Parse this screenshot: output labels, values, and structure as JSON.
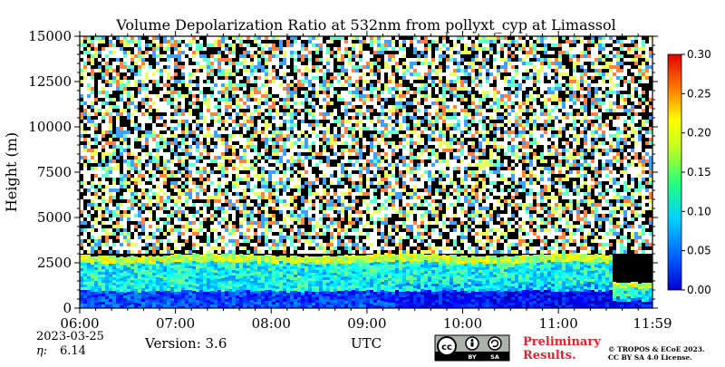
{
  "chart_data": {
    "type": "heatmap",
    "title": "Volume Depolarization Ratio at 532nm from pollyxt_cyp at Limassol",
    "xlabel": "UTC",
    "ylabel": "Height (m)",
    "xlim": [
      "06:00",
      "11:59"
    ],
    "ylim": [
      0,
      15000
    ],
    "x_ticks": [
      "06:00",
      "07:00",
      "08:00",
      "09:00",
      "10:00",
      "11:00",
      "11:59"
    ],
    "x_tick_hours": [
      6,
      7,
      8,
      9,
      10,
      11,
      11.983
    ],
    "y_ticks": [
      0,
      2500,
      5000,
      7500,
      10000,
      12500,
      15000
    ],
    "y_tick_labels": [
      "0",
      "2500",
      "5000",
      "7500",
      "10000",
      "12500",
      "15000"
    ],
    "colorbar": {
      "range": [
        0,
        0.3
      ],
      "ticks": [
        0,
        0.05,
        0.1,
        0.15,
        0.2,
        0.25,
        0.3
      ],
      "tick_labels": [
        "0.00",
        "0.05",
        "0.10",
        "0.15",
        "0.20",
        "0.25",
        "0.30"
      ],
      "colormap": "jet"
    },
    "layers": [
      {
        "description": "boundary layer (aerosol)",
        "height_range_m": [
          0,
          2900
        ],
        "typical_value": 0.07
      },
      {
        "description": "near-surface weaker depolarization",
        "height_range_m": [
          0,
          800
        ],
        "typical_value": 0.04
      },
      {
        "description": "layer top (enhanced)",
        "height_range_m": [
          2700,
          3100
        ],
        "typical_value": 0.16
      },
      {
        "description": "noise region above layer",
        "height_range_m": [
          3100,
          15000
        ],
        "typical_value": "noisy"
      }
    ]
  },
  "footer": {
    "date": "2023-03-25",
    "eta_label": "η:",
    "eta_value": "6.14",
    "version": "Version: 3.6",
    "license_icon_text": {
      "cc": "cc",
      "by": "BY",
      "sa": "SA"
    },
    "preliminary_line1": "Preliminary",
    "preliminary_line2": "Results.",
    "copyright_line1": "© TROPOS & ECoE 2023.",
    "copyright_line2": "CC BY SA 4.0 License."
  },
  "colors": {
    "preliminary": "#e8202a",
    "axis": "#000000",
    "noise_background": "#000000"
  }
}
